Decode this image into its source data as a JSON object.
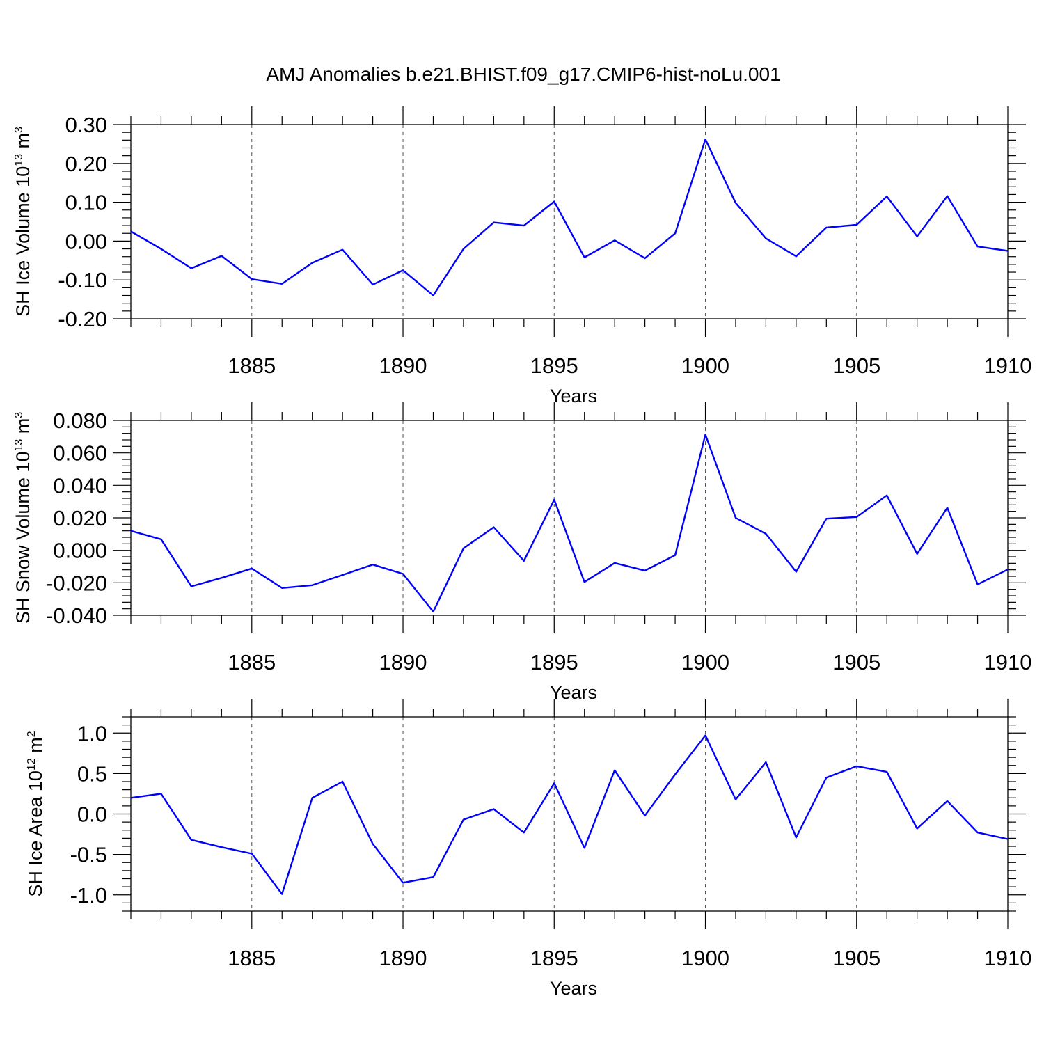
{
  "title": "AMJ Anomalies b.e21.BHIST.f09_g17.CMIP6-hist-noLu.001",
  "colors": {
    "line": "#0000ff",
    "grid": "#555555",
    "frame": "#000000"
  },
  "chart_data": [
    {
      "type": "line",
      "xlabel": "Years",
      "ylabel": {
        "main": "SH Ice Volume 10",
        "sup": "13",
        "tail": " m",
        "sup2": "3"
      },
      "xlim": [
        1881,
        1910
      ],
      "ylim": [
        -0.2,
        0.3
      ],
      "xticks": [
        1885,
        1890,
        1895,
        1900,
        1905,
        1910
      ],
      "xtick_labels": [
        "1885",
        "1890",
        "1895",
        "1900",
        "1905",
        "1910"
      ],
      "yticks": [
        -0.2,
        -0.1,
        0.0,
        0.1,
        0.2,
        0.3
      ],
      "ytick_labels": [
        "-0.20",
        "-0.10",
        "0.00",
        "0.10",
        "0.20",
        "0.30"
      ],
      "grid": "dashed vertical at x ticks",
      "x": [
        1881,
        1882,
        1883,
        1884,
        1885,
        1886,
        1887,
        1888,
        1889,
        1890,
        1891,
        1892,
        1893,
        1894,
        1895,
        1896,
        1897,
        1898,
        1899,
        1900,
        1901,
        1902,
        1903,
        1904,
        1905,
        1906,
        1907,
        1908,
        1909,
        1910
      ],
      "values": [
        0.025,
        -0.02,
        -0.07,
        -0.038,
        -0.098,
        -0.11,
        -0.056,
        -0.022,
        -0.112,
        -0.075,
        -0.14,
        -0.02,
        0.048,
        0.04,
        0.102,
        -0.042,
        0.002,
        -0.044,
        0.02,
        0.262,
        0.098,
        0.007,
        -0.039,
        0.035,
        0.042,
        0.115,
        0.012,
        0.116,
        -0.014,
        -0.025
      ]
    },
    {
      "type": "line",
      "xlabel": "Years",
      "ylabel": {
        "main": "SH Snow Volume 10",
        "sup": "13",
        "tail": " m",
        "sup2": "3"
      },
      "xlim": [
        1881,
        1910
      ],
      "ylim": [
        -0.04,
        0.08
      ],
      "xticks": [
        1885,
        1890,
        1895,
        1900,
        1905,
        1910
      ],
      "xtick_labels": [
        "1885",
        "1890",
        "1895",
        "1900",
        "1905",
        "1910"
      ],
      "yticks": [
        -0.04,
        -0.02,
        0.0,
        0.02,
        0.04,
        0.06,
        0.08
      ],
      "ytick_labels": [
        "-0.040",
        "-0.020",
        "0.000",
        "0.020",
        "0.040",
        "0.060",
        "0.080"
      ],
      "grid": "dashed vertical at x ticks",
      "x": [
        1881,
        1882,
        1883,
        1884,
        1885,
        1886,
        1887,
        1888,
        1889,
        1890,
        1891,
        1892,
        1893,
        1894,
        1895,
        1896,
        1897,
        1898,
        1899,
        1900,
        1901,
        1902,
        1903,
        1904,
        1905,
        1906,
        1907,
        1908,
        1909,
        1910
      ],
      "values": [
        0.012,
        0.0068,
        -0.0222,
        -0.017,
        -0.0112,
        -0.0232,
        -0.0215,
        -0.0152,
        -0.0088,
        -0.0145,
        -0.0378,
        0.0012,
        0.0142,
        -0.0065,
        0.0312,
        -0.0195,
        -0.0078,
        -0.0125,
        -0.003,
        0.0712,
        0.02,
        0.0102,
        -0.0132,
        0.0195,
        0.0205,
        0.0338,
        -0.0022,
        0.0262,
        -0.021,
        -0.0118
      ]
    },
    {
      "type": "line",
      "xlabel": "Years",
      "ylabel": {
        "main": "SH Ice Area 10",
        "sup": "12",
        "tail": " m",
        "sup2": "2"
      },
      "xlim": [
        1881,
        1910
      ],
      "ylim": [
        -1.2,
        1.2
      ],
      "xticks": [
        1885,
        1890,
        1895,
        1900,
        1905,
        1910
      ],
      "xtick_labels": [
        "1885",
        "1890",
        "1895",
        "1900",
        "1905",
        "1910"
      ],
      "yticks": [
        -1.0,
        -0.5,
        0.0,
        0.5,
        1.0
      ],
      "ytick_labels": [
        "-1.0",
        "-0.5",
        "0.0",
        "0.5",
        "1.0"
      ],
      "grid": "dashed vertical at x ticks",
      "x": [
        1881,
        1882,
        1883,
        1884,
        1885,
        1886,
        1887,
        1888,
        1889,
        1890,
        1891,
        1892,
        1893,
        1894,
        1895,
        1896,
        1897,
        1898,
        1899,
        1900,
        1901,
        1902,
        1903,
        1904,
        1905,
        1906,
        1907,
        1908,
        1909,
        1910
      ],
      "values": [
        0.2,
        0.25,
        -0.32,
        -0.41,
        -0.49,
        -0.99,
        0.2,
        0.4,
        -0.37,
        -0.85,
        -0.78,
        -0.07,
        0.06,
        -0.23,
        0.38,
        -0.42,
        0.54,
        -0.02,
        0.49,
        0.97,
        0.18,
        0.64,
        -0.29,
        0.45,
        0.59,
        0.52,
        -0.18,
        0.16,
        -0.23,
        -0.31
      ]
    }
  ]
}
